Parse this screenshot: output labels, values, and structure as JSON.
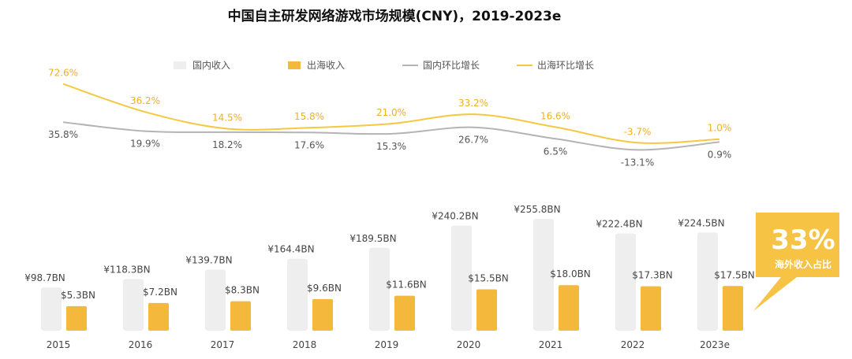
{
  "title": "中国自主研发网络游戏市场规模(CNY)，2019-2023e",
  "legend": {
    "domestic_revenue": "国内收入",
    "overseas_revenue": "出海收入",
    "domestic_growth": "国内环比增长",
    "overseas_growth": "出海环比增长"
  },
  "colors": {
    "domestic": "#eeeeee",
    "overseas": "#f4b83c",
    "domestic_line": "#b4b4b4",
    "overseas_line": "#f5c842",
    "overseas_label": "#f0b020",
    "text": "#444444"
  },
  "callout": {
    "value": "33%",
    "label": "海外收入占比"
  },
  "chart_data": {
    "type": "bar",
    "categories": [
      "2015",
      "2016",
      "2017",
      "2018",
      "2019",
      "2020",
      "2021",
      "2022",
      "2023e"
    ],
    "series": [
      {
        "name": "国内收入",
        "values": [
          98.7,
          118.3,
          139.7,
          164.4,
          189.5,
          240.2,
          255.8,
          222.4,
          224.5
        ],
        "labels": [
          "¥98.7BN",
          "¥118.3BN",
          "¥139.7BN",
          "¥164.4BN",
          "¥189.5BN",
          "¥240.2BN",
          "¥255.8BN",
          "¥222.4BN",
          "¥224.5BN"
        ]
      },
      {
        "name": "出海收入",
        "values": [
          5.3,
          7.2,
          8.3,
          9.6,
          11.6,
          15.5,
          18.0,
          17.3,
          17.5
        ],
        "labels": [
          "$5.3BN",
          "$7.2BN",
          "$8.3BN",
          "$9.6BN",
          "$11.6BN",
          "$15.5BN",
          "$18.0BN",
          "$17.3BN",
          "$17.5BN"
        ]
      }
    ],
    "lines": [
      {
        "name": "国内环比增长",
        "values": [
          35.8,
          19.9,
          18.2,
          17.6,
          15.3,
          26.7,
          6.5,
          -13.1,
          0.9
        ],
        "labels": [
          "35.8%",
          "19.9%",
          "18.2%",
          "17.6%",
          "15.3%",
          "26.7%",
          "6.5%",
          "-13.1%",
          "0.9%"
        ]
      },
      {
        "name": "出海环比增长",
        "values": [
          72.6,
          36.2,
          14.5,
          15.8,
          21.0,
          33.2,
          16.6,
          -3.7,
          1.0
        ],
        "labels": [
          "72.6%",
          "36.2%",
          "14.5%",
          "15.8%",
          "21.0%",
          "33.2%",
          "16.6%",
          "-3.7%",
          "1.0%"
        ]
      }
    ]
  }
}
